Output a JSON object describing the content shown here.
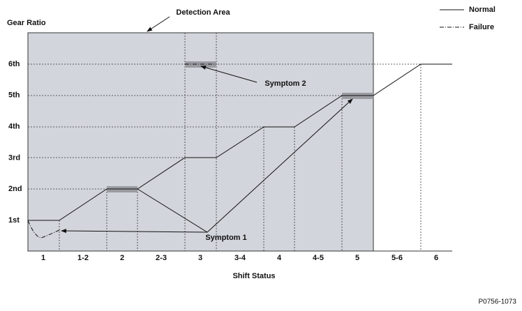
{
  "annotations": {
    "detection_area": "Detection Area",
    "symptom_1": "Symptom 1",
    "symptom_2": "Symptom 2"
  },
  "y_axis": {
    "label": "Gear Ratio",
    "ticks": [
      "1st",
      "2nd",
      "3rd",
      "4th",
      "5th",
      "6th"
    ]
  },
  "x_axis": {
    "label": "Shift Status",
    "ticks": [
      "1",
      "1-2",
      "2",
      "2-3",
      "3",
      "3-4",
      "4",
      "4-5",
      "5",
      "5-6",
      "6"
    ]
  },
  "legend": [
    {
      "label": "Normal"
    },
    {
      "label": "Failure"
    }
  ],
  "figure_id": "P0756-1073"
}
